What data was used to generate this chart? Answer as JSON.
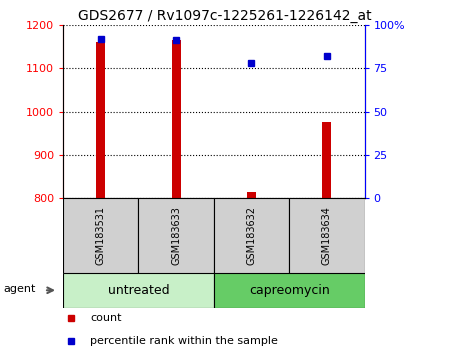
{
  "title": "GDS2677 / Rv1097c-1225261-1226142_at",
  "samples": [
    "GSM183531",
    "GSM183633",
    "GSM183632",
    "GSM183634"
  ],
  "counts": [
    1160,
    1165,
    815,
    975
  ],
  "percentiles": [
    92,
    91,
    78,
    82
  ],
  "groups": [
    {
      "label": "untreated",
      "indices": [
        0,
        1
      ]
    },
    {
      "label": "capreomycin",
      "indices": [
        2,
        3
      ]
    }
  ],
  "ylim_left": [
    800,
    1200
  ],
  "ylim_right": [
    0,
    100
  ],
  "yticks_left": [
    800,
    900,
    1000,
    1100,
    1200
  ],
  "yticks_right": [
    0,
    25,
    50,
    75,
    100
  ],
  "yticklabels_right": [
    "0",
    "25",
    "50",
    "75",
    "100%"
  ],
  "bar_color": "#cc0000",
  "dot_color": "#0000cc",
  "bar_width": 0.12,
  "group_colors": [
    "#c8f0c8",
    "#66cc66"
  ],
  "agent_label": "agent",
  "legend_items": [
    {
      "color": "#cc0000",
      "label": "count"
    },
    {
      "color": "#0000cc",
      "label": "percentile rank within the sample"
    }
  ],
  "title_fontsize": 10,
  "tick_fontsize": 8,
  "sample_fontsize": 7,
  "group_fontsize": 9,
  "legend_fontsize": 8
}
